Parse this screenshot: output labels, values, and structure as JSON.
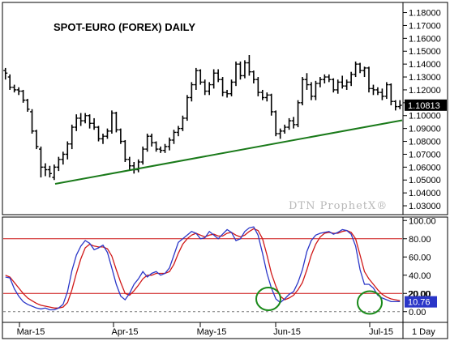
{
  "chart_data": [
    {
      "type": "ohlc-bar",
      "title": "SPOT-EURO (FOREX) DAILY",
      "watermark": "DTN ProphetX®",
      "ylim": [
        1.025,
        1.186
      ],
      "yticks": [
        "1.18000",
        "1.17000",
        "1.16000",
        "1.15000",
        "1.14000",
        "1.13000",
        "1.12000",
        "1.11000",
        "1.10000",
        "1.09000",
        "1.08000",
        "1.07000",
        "1.06000",
        "1.05000",
        "1.04000",
        "1.03000"
      ],
      "last_price_label": "1.10813",
      "last_price": 1.10813,
      "series": [
        {
          "name": "price",
          "values": [
            [
              1.135,
              1.137,
              1.128,
              1.133
            ],
            [
              1.13,
              1.132,
              1.12,
              1.122
            ],
            [
              1.122,
              1.124,
              1.118,
              1.12
            ],
            [
              1.12,
              1.122,
              1.116,
              1.119
            ],
            [
              1.119,
              1.12,
              1.11,
              1.112
            ],
            [
              1.112,
              1.113,
              1.103,
              1.105
            ],
            [
              1.103,
              1.105,
              1.086,
              1.088
            ],
            [
              1.088,
              1.089,
              1.074,
              1.076
            ],
            [
              1.074,
              1.076,
              1.052,
              1.06
            ],
            [
              1.06,
              1.063,
              1.053,
              1.058
            ],
            [
              1.058,
              1.061,
              1.052,
              1.055
            ],
            [
              1.052,
              1.062,
              1.05,
              1.06
            ],
            [
              1.06,
              1.068,
              1.057,
              1.066
            ],
            [
              1.066,
              1.072,
              1.062,
              1.07
            ],
            [
              1.07,
              1.08,
              1.066,
              1.078
            ],
            [
              1.078,
              1.093,
              1.074,
              1.091
            ],
            [
              1.091,
              1.101,
              1.088,
              1.098
            ],
            [
              1.098,
              1.102,
              1.092,
              1.096
            ],
            [
              1.096,
              1.102,
              1.094,
              1.1
            ],
            [
              1.1,
              1.101,
              1.09,
              1.094
            ],
            [
              1.094,
              1.098,
              1.089,
              1.091
            ],
            [
              1.091,
              1.092,
              1.08,
              1.082
            ],
            [
              1.082,
              1.086,
              1.078,
              1.084
            ],
            [
              1.084,
              1.09,
              1.082,
              1.088
            ],
            [
              1.088,
              1.104,
              1.086,
              1.102
            ],
            [
              1.102,
              1.103,
              1.087,
              1.089
            ],
            [
              1.089,
              1.09,
              1.078,
              1.08
            ],
            [
              1.08,
              1.081,
              1.064,
              1.066
            ],
            [
              1.066,
              1.068,
              1.058,
              1.061
            ],
            [
              1.061,
              1.064,
              1.055,
              1.058
            ],
            [
              1.058,
              1.066,
              1.056,
              1.064
            ],
            [
              1.064,
              1.076,
              1.062,
              1.074
            ],
            [
              1.074,
              1.086,
              1.072,
              1.084
            ],
            [
              1.084,
              1.086,
              1.076,
              1.079
            ],
            [
              1.079,
              1.08,
              1.072,
              1.074
            ],
            [
              1.074,
              1.076,
              1.071,
              1.073
            ],
            [
              1.073,
              1.078,
              1.071,
              1.076
            ],
            [
              1.076,
              1.083,
              1.073,
              1.081
            ],
            [
              1.081,
              1.089,
              1.078,
              1.087
            ],
            [
              1.087,
              1.092,
              1.084,
              1.09
            ],
            [
              1.09,
              1.1,
              1.088,
              1.098
            ],
            [
              1.098,
              1.116,
              1.096,
              1.114
            ],
            [
              1.114,
              1.126,
              1.111,
              1.124
            ],
            [
              1.124,
              1.137,
              1.12,
              1.135
            ],
            [
              1.135,
              1.136,
              1.124,
              1.126
            ],
            [
              1.126,
              1.128,
              1.116,
              1.119
            ],
            [
              1.119,
              1.126,
              1.116,
              1.124
            ],
            [
              1.124,
              1.136,
              1.121,
              1.133
            ],
            [
              1.133,
              1.136,
              1.126,
              1.128
            ],
            [
              1.128,
              1.13,
              1.115,
              1.118
            ],
            [
              1.118,
              1.12,
              1.114,
              1.117
            ],
            [
              1.117,
              1.128,
              1.115,
              1.126
            ],
            [
              1.126,
              1.142,
              1.123,
              1.14
            ],
            [
              1.14,
              1.142,
              1.128,
              1.131
            ],
            [
              1.131,
              1.143,
              1.129,
              1.141
            ],
            [
              1.141,
              1.147,
              1.131,
              1.134
            ],
            [
              1.134,
              1.135,
              1.125,
              1.128
            ],
            [
              1.128,
              1.13,
              1.115,
              1.118
            ],
            [
              1.118,
              1.12,
              1.112,
              1.114
            ],
            [
              1.114,
              1.118,
              1.111,
              1.116
            ],
            [
              1.116,
              1.117,
              1.1,
              1.103
            ],
            [
              1.103,
              1.104,
              1.084,
              1.086
            ],
            [
              1.086,
              1.09,
              1.082,
              1.088
            ],
            [
              1.088,
              1.093,
              1.086,
              1.091
            ],
            [
              1.091,
              1.098,
              1.089,
              1.096
            ],
            [
              1.096,
              1.099,
              1.09,
              1.093
            ],
            [
              1.093,
              1.112,
              1.091,
              1.11
            ],
            [
              1.11,
              1.13,
              1.108,
              1.128
            ],
            [
              1.128,
              1.133,
              1.12,
              1.124
            ],
            [
              1.124,
              1.126,
              1.112,
              1.115
            ],
            [
              1.115,
              1.127,
              1.112,
              1.125
            ],
            [
              1.125,
              1.13,
              1.122,
              1.128
            ],
            [
              1.128,
              1.132,
              1.125,
              1.13
            ],
            [
              1.13,
              1.132,
              1.126,
              1.128
            ],
            [
              1.128,
              1.129,
              1.118,
              1.12
            ],
            [
              1.12,
              1.128,
              1.117,
              1.126
            ],
            [
              1.126,
              1.131,
              1.121,
              1.123
            ],
            [
              1.123,
              1.128,
              1.12,
              1.126
            ],
            [
              1.126,
              1.134,
              1.123,
              1.132
            ],
            [
              1.132,
              1.142,
              1.13,
              1.14
            ],
            [
              1.14,
              1.141,
              1.133,
              1.135
            ],
            [
              1.135,
              1.138,
              1.13,
              1.137
            ],
            [
              1.137,
              1.138,
              1.118,
              1.121
            ],
            [
              1.121,
              1.124,
              1.116,
              1.12
            ],
            [
              1.12,
              1.122,
              1.116,
              1.118
            ],
            [
              1.118,
              1.121,
              1.112,
              1.115
            ],
            [
              1.115,
              1.126,
              1.113,
              1.124
            ],
            [
              1.124,
              1.125,
              1.108,
              1.111
            ],
            [
              1.111,
              1.112,
              1.104,
              1.107
            ],
            [
              1.107,
              1.112,
              1.105,
              1.108
            ]
          ]
        },
        {
          "name": "trendline",
          "x": [
            13,
            176
          ],
          "values": [
            1.047,
            1.0964
          ]
        }
      ]
    },
    {
      "type": "line",
      "ylim": [
        -10,
        102
      ],
      "yticks": [
        "100.00",
        "80.00",
        "60.00",
        "40.00",
        "20.00",
        "0.00"
      ],
      "ytick_values": [
        100,
        80,
        60,
        40,
        20,
        0
      ],
      "hlines": [
        80,
        20
      ],
      "dashed_hline": 0,
      "covered_label": "20.00",
      "last_value_label": "10.76",
      "last_value": 10.76,
      "series": [
        {
          "name": "fast",
          "color": "#2a36c8",
          "values": [
            38,
            37,
            25,
            17,
            11,
            8,
            6,
            4,
            3,
            4,
            2,
            2,
            4,
            8,
            22,
            45,
            62,
            72,
            78,
            75,
            68,
            70,
            73,
            65,
            48,
            30,
            17,
            13,
            20,
            30,
            36,
            44,
            38,
            42,
            44,
            40,
            42,
            48,
            62,
            76,
            80,
            84,
            88,
            86,
            80,
            81,
            88,
            84,
            80,
            85,
            90,
            87,
            78,
            80,
            88,
            92,
            93,
            84,
            64,
            42,
            26,
            14,
            10,
            14,
            19,
            22,
            32,
            46,
            66,
            78,
            84,
            86,
            87,
            88,
            85,
            87,
            90,
            89,
            85,
            72,
            46,
            30,
            30,
            26,
            18,
            15,
            13,
            11,
            11,
            11
          ]
        },
        {
          "name": "slow",
          "color": "#d01818",
          "values": [
            40,
            38,
            32,
            26,
            20,
            15,
            12,
            9,
            7,
            6,
            5,
            4,
            4,
            5,
            10,
            24,
            42,
            58,
            70,
            74,
            72,
            71,
            71,
            69,
            61,
            46,
            32,
            20,
            18,
            23,
            29,
            36,
            40,
            40,
            42,
            42,
            42,
            44,
            52,
            64,
            74,
            80,
            84,
            86,
            84,
            82,
            84,
            85,
            83,
            83,
            86,
            87,
            84,
            82,
            84,
            88,
            91,
            89,
            80,
            62,
            42,
            28,
            17,
            13,
            15,
            18,
            24,
            32,
            46,
            62,
            74,
            82,
            86,
            87,
            86,
            86,
            88,
            89,
            87,
            80,
            62,
            44,
            36,
            30,
            24,
            19,
            16,
            14,
            13,
            12
          ]
        }
      ],
      "x_labels": [
        "Mar-15",
        "Apr-15",
        "May-15",
        "Jun-15",
        "Jul-15"
      ],
      "x_label_index": [
        6,
        30,
        54,
        78,
        100
      ],
      "circles": [
        [
          74,
          14
        ],
        [
          104,
          10
        ]
      ]
    }
  ],
  "period_label": "1 Day"
}
